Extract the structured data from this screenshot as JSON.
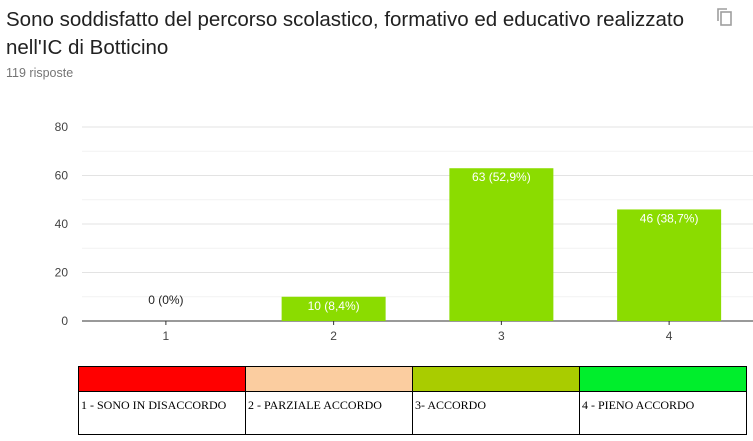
{
  "header": {
    "title": "Sono soddisfatto del percorso scolastico, formativo ed educativo realizzato nell'IC di Botticino",
    "responses": "119 risposte",
    "copy_icon": "copy-icon"
  },
  "chart_data": {
    "type": "bar",
    "categories": [
      "1",
      "2",
      "3",
      "4"
    ],
    "values": [
      0,
      10,
      63,
      46
    ],
    "data_labels": [
      "0 (0%)",
      "10 (8,4%)",
      "63 (52,9%)",
      "46 (38,7%)"
    ],
    "yticks": [
      "0",
      "20",
      "40",
      "60",
      "80"
    ],
    "ylim": [
      0,
      80
    ],
    "grid": true,
    "bar_color": "#8bdc00",
    "title": "",
    "xlabel": "",
    "ylabel": ""
  },
  "legend": {
    "items": [
      {
        "label": "1 - SONO IN DISACCORDO",
        "color": "#ff0000"
      },
      {
        "label": "2 - PARZIALE ACCORDO",
        "color": "#fbcda0"
      },
      {
        "label": "3- ACCORDO",
        "color": "#a9cc00"
      },
      {
        "label": "4 - PIENO ACCORDO",
        "color": "#00ee2c"
      }
    ]
  }
}
